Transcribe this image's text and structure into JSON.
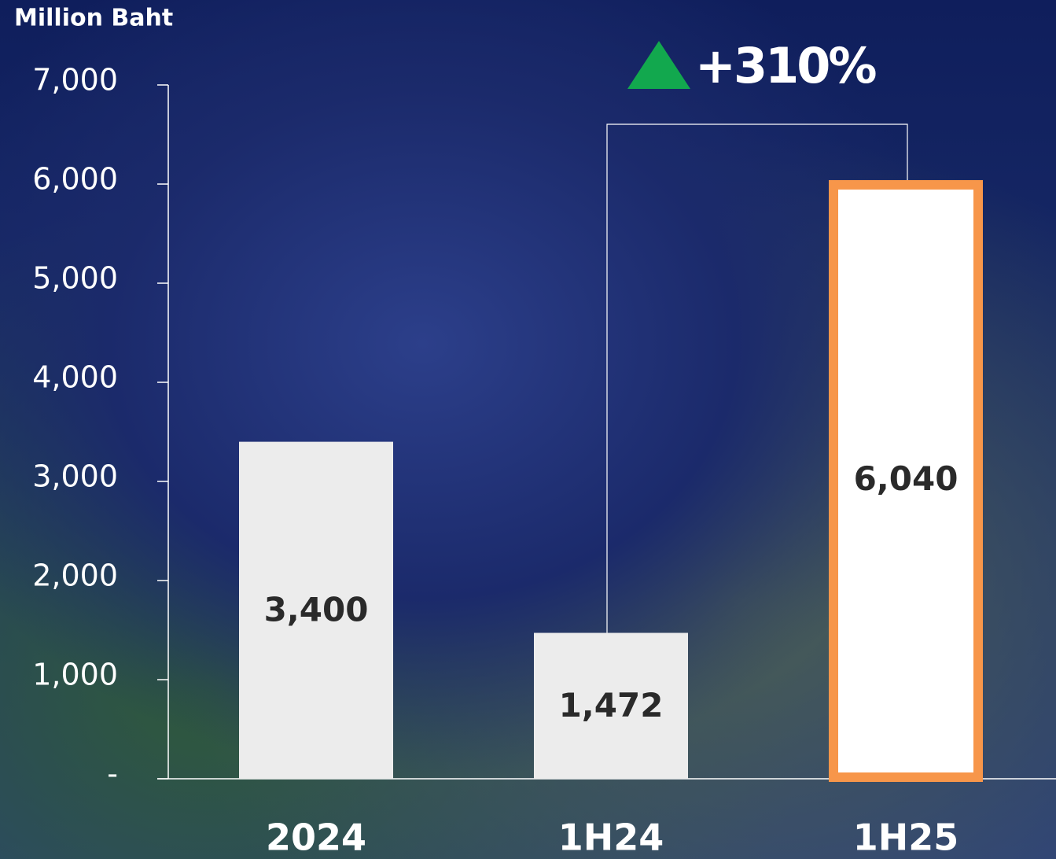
{
  "chart_data": {
    "type": "bar",
    "y_label": "Million Baht",
    "annotation": "+310%",
    "categories": [
      "2024",
      "1H24",
      "1H25"
    ],
    "values": [
      3400,
      1472,
      6040
    ],
    "value_labels": [
      "3,400",
      "1,472",
      "6,040"
    ],
    "colors": [
      "#ececec",
      "#ececec",
      "#ffffff"
    ],
    "edgecolors": [
      null,
      null,
      "#f7964a"
    ],
    "ylim": [
      0,
      7000
    ],
    "yticks": [
      {
        "value": 0,
        "label": "-"
      },
      {
        "value": 1000,
        "label": "1,000"
      },
      {
        "value": 2000,
        "label": "2,000"
      },
      {
        "value": 3000,
        "label": "3,000"
      },
      {
        "value": 4000,
        "label": "4,000"
      },
      {
        "value": 5000,
        "label": "5,000"
      },
      {
        "value": 6000,
        "label": "6,000"
      },
      {
        "value": 7000,
        "label": "7,000"
      }
    ]
  }
}
